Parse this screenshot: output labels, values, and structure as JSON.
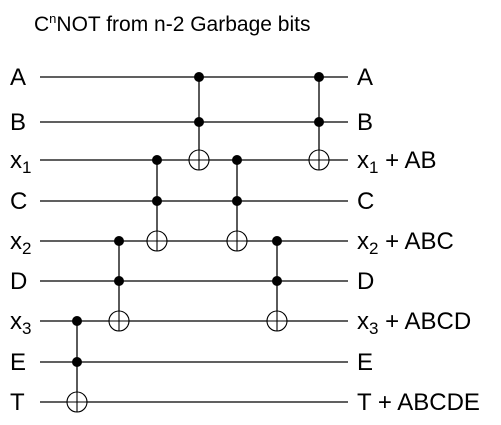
{
  "title": {
    "prefix": "C",
    "sup": "n",
    "rest": "NOT from n-2 Garbage bits"
  },
  "wires": [
    {
      "id": "A",
      "left": "A",
      "left_sub": "",
      "right": "A",
      "right_sub": "",
      "right_rest": ""
    },
    {
      "id": "B",
      "left": "B",
      "left_sub": "",
      "right": "B",
      "right_sub": "",
      "right_rest": ""
    },
    {
      "id": "x1",
      "left": "x",
      "left_sub": "1",
      "right": "x",
      "right_sub": "1",
      "right_rest": " + AB"
    },
    {
      "id": "C",
      "left": "C",
      "left_sub": "",
      "right": "C",
      "right_sub": "",
      "right_rest": ""
    },
    {
      "id": "x2",
      "left": "x",
      "left_sub": "2",
      "right": "x",
      "right_sub": "2",
      "right_rest": " + ABC"
    },
    {
      "id": "D",
      "left": "D",
      "left_sub": "",
      "right": "D",
      "right_sub": "",
      "right_rest": ""
    },
    {
      "id": "x3",
      "left": "x",
      "left_sub": "3",
      "right": "x",
      "right_sub": "3",
      "right_rest": " + ABCD"
    },
    {
      "id": "E",
      "left": "E",
      "left_sub": "",
      "right": "E",
      "right_sub": "",
      "right_rest": ""
    },
    {
      "id": "T",
      "left": "T",
      "left_sub": "",
      "right": "T + ABCDE",
      "right_sub": "",
      "right_rest": ""
    }
  ],
  "gates": [
    {
      "controls": [
        0,
        1
      ],
      "target": 2
    },
    {
      "controls": [
        2,
        3
      ],
      "target": 4
    },
    {
      "controls": [
        4,
        5
      ],
      "target": 6
    },
    {
      "controls": [
        6,
        7
      ],
      "target": 8
    },
    {
      "controls": [
        4,
        5
      ],
      "target": 6
    },
    {
      "controls": [
        2,
        3
      ],
      "target": 4
    },
    {
      "controls": [
        0,
        1
      ],
      "target": 2
    }
  ]
}
